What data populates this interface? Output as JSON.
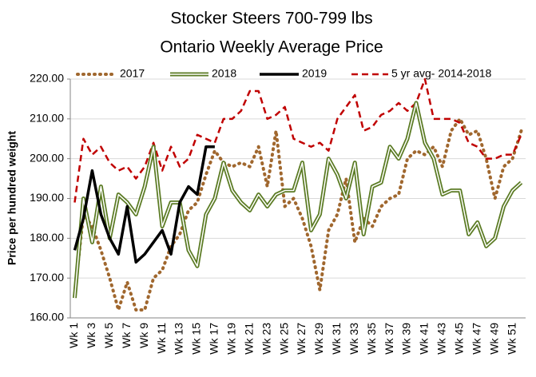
{
  "chart_data": {
    "type": "line",
    "title": "Stocker Steers 700-799 lbs",
    "subtitle": "Ontario Weekly Average Price",
    "y_label": "Price per hundred weight",
    "categories": [
      "Wk 1",
      null,
      "Wk 3",
      null,
      "Wk 5",
      null,
      "Wk 7",
      null,
      "Wk 9",
      null,
      "Wk 11",
      null,
      "Wk 13",
      null,
      "Wk 15",
      null,
      "Wk 17",
      null,
      "Wk 19",
      null,
      "Wk 21",
      null,
      "Wk 23",
      null,
      "Wk 25",
      null,
      "Wk 27",
      null,
      "Wk 29",
      null,
      "Wk 31",
      null,
      "Wk 33",
      null,
      "Wk 35",
      null,
      "Wk 37",
      null,
      "Wk 39",
      null,
      "Wk 41",
      null,
      "Wk 43",
      null,
      "Wk 45",
      null,
      "Wk 47",
      null,
      "Wk 49",
      null,
      "Wk 51",
      null
    ],
    "series": [
      {
        "name": "2017",
        "color": "#a0672e",
        "style": "dotted",
        "values": [
          166,
          186,
          183,
          177,
          170,
          162,
          169,
          162,
          162,
          170,
          172,
          178,
          181,
          187,
          189,
          196,
          202,
          199,
          198,
          199,
          198,
          203,
          193,
          207,
          188,
          190,
          185,
          178,
          167,
          182,
          186,
          195,
          179,
          185,
          183,
          188,
          190,
          191,
          200,
          202,
          201,
          203,
          198,
          207,
          210,
          206,
          207,
          200,
          190,
          198,
          200,
          207
        ]
      },
      {
        "name": "2018",
        "color": "#5b7b24",
        "style": "double",
        "values": [
          165,
          190,
          179,
          193,
          180,
          191,
          189,
          186,
          193,
          203,
          183,
          189,
          189,
          177,
          173,
          186,
          190,
          199,
          192,
          189,
          187,
          191,
          188,
          191,
          192,
          192,
          199,
          182,
          186,
          200,
          196,
          190,
          199,
          181,
          193,
          194,
          203,
          200,
          205,
          214,
          204,
          200,
          191,
          192,
          192,
          181,
          184,
          178,
          180,
          188,
          192,
          194
        ]
      },
      {
        "name": "2019",
        "color": "#000000",
        "style": "solid",
        "values": [
          177,
          185,
          197,
          186,
          180,
          176,
          188,
          174,
          176,
          179,
          182,
          176,
          189,
          193,
          191,
          203,
          203,
          null,
          null,
          null,
          null,
          null,
          null,
          null,
          null,
          null,
          null,
          null,
          null,
          null,
          null,
          null,
          null,
          null,
          null,
          null,
          null,
          null,
          null,
          null,
          null,
          null,
          null,
          null,
          null,
          null,
          null,
          null,
          null,
          null,
          null,
          null
        ]
      },
      {
        "name": "5 yr avg- 2014-2018",
        "color": "#c00000",
        "style": "dashed",
        "values": [
          189,
          205,
          201,
          203,
          199,
          197,
          198,
          195,
          198,
          204,
          197,
          203,
          198,
          200,
          206,
          205,
          204,
          210,
          210,
          212,
          217,
          217,
          210,
          211,
          213,
          205,
          204,
          203,
          204,
          202,
          210,
          213,
          216,
          207,
          208,
          211,
          212,
          214,
          212,
          214,
          220,
          210,
          210,
          210,
          209,
          204,
          203,
          200,
          200,
          201,
          201,
          206
        ]
      }
    ],
    "ylim": [
      160,
      220
    ],
    "yticks": [
      {
        "value": 160,
        "label": "160.00"
      },
      {
        "value": 170,
        "label": "170.00"
      },
      {
        "value": 180,
        "label": "180.00"
      },
      {
        "value": 190,
        "label": "190.00"
      },
      {
        "value": 200,
        "label": "200.00"
      },
      {
        "value": 210,
        "label": "210.00"
      },
      {
        "value": 220,
        "label": "220.00"
      }
    ],
    "grid": true,
    "legend": "top"
  }
}
